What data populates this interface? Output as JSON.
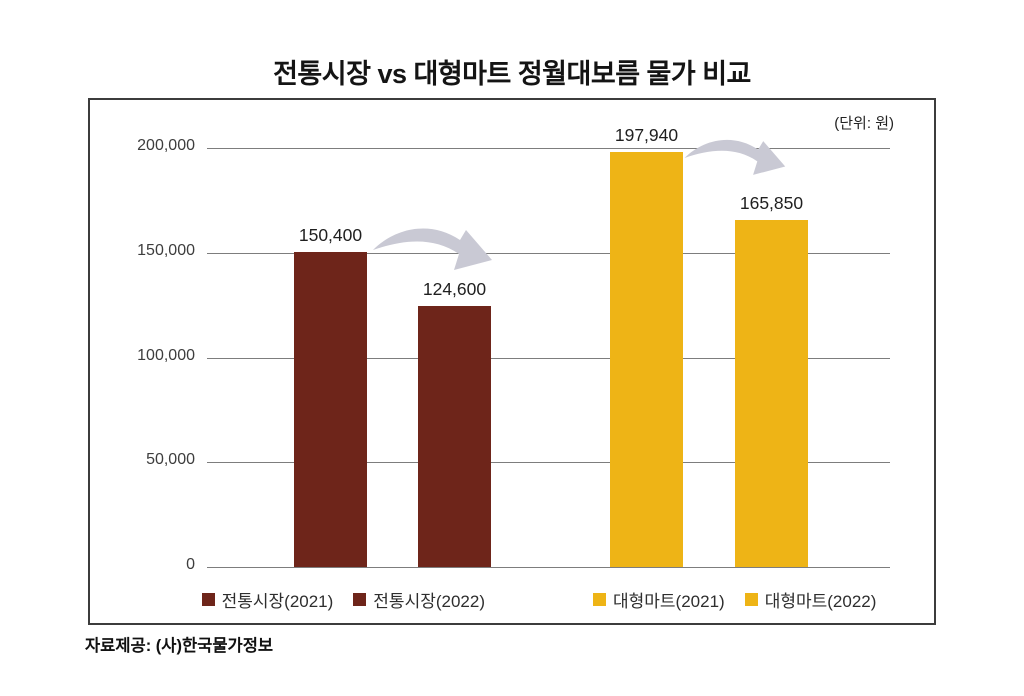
{
  "title": "전통시장 vs 대형마트 정월대보름 물가 비교",
  "unit_label": "(단위: 원)",
  "source": "자료제공: (사)한국물가정보",
  "colors": {
    "traditional_market": "#6e251a",
    "large_mart": "#eeb416",
    "arrow": "#c9c9d4",
    "gridline": "#7d7d7d",
    "title_text": "#141414"
  },
  "chart_data": {
    "type": "bar",
    "title": "전통시장 vs 대형마트 정월대보름 물가 비교",
    "unit": "(단위: 원)",
    "categories": [
      "전통시장(2021)",
      "전통시장(2022)",
      "대형마트(2021)",
      "대형마트(2022)"
    ],
    "values": [
      150400,
      124600,
      197940,
      165850
    ],
    "value_labels": [
      "150,400",
      "124,600",
      "197,940",
      "165,850"
    ],
    "bar_colors": [
      "#6e251a",
      "#6e251a",
      "#eeb416",
      "#eeb416"
    ],
    "ylim": [
      0,
      200000
    ],
    "yticks": [
      200000,
      150000,
      100000,
      50000,
      0
    ],
    "ytick_labels": [
      "200,000",
      "150,000",
      "100,000",
      "50,000",
      "0"
    ],
    "grid": true,
    "legend_position": "bottom",
    "annotations": [
      "decrease arrow from 전통시장(2021) to 전통시장(2022)",
      "decrease arrow from 대형마트(2021) to 대형마트(2022)"
    ]
  },
  "legend": {
    "items": [
      {
        "label": "전통시장(2021)",
        "color": "#6e251a"
      },
      {
        "label": "전통시장(2022)",
        "color": "#6e251a"
      },
      {
        "label": "대형마트(2021)",
        "color": "#eeb416"
      },
      {
        "label": "대형마트(2022)",
        "color": "#eeb416"
      }
    ]
  }
}
